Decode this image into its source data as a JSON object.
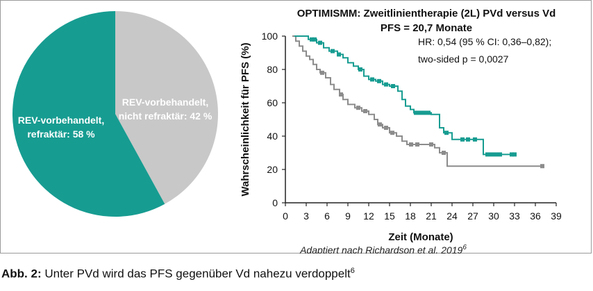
{
  "chart_data": [
    {
      "type": "pie",
      "slices": [
        {
          "label_line1": "REV-vorbehandelt,",
          "label_line2": "refraktär: 58 %",
          "value": 58,
          "color": "#179c91"
        },
        {
          "label_line1": "REV-vorbehandelt,",
          "label_line2": "nicht refraktär: 42 %",
          "value": 42,
          "color": "#c8c8c8"
        }
      ]
    },
    {
      "type": "line",
      "title": "OPTIMISMM: Zweitlinientherapie (2L) PVd versus Vd",
      "subtitle": "PFS = 20,7 Monate",
      "annotation_line1": "HR: 0,54 (95 % CI: 0,36–0,82);",
      "annotation_line2": "two-sided p = 0,0027",
      "xlabel": "Zeit (Monate)",
      "ylabel": "Wahrscheinlichkeit für PFS (%)",
      "xlim": [
        0,
        39
      ],
      "ylim": [
        0,
        100
      ],
      "xticks": [
        0,
        3,
        6,
        9,
        12,
        15,
        18,
        21,
        24,
        27,
        30,
        33,
        36,
        39
      ],
      "yticks": [
        0,
        20,
        40,
        60,
        80,
        100
      ],
      "source_note": "Adaptiert nach Richardson et al. 2019",
      "source_sup": "6",
      "series": [
        {
          "color": "#179c91",
          "steps": [
            [
              1.3,
              100
            ],
            [
              3.3,
              98
            ],
            [
              4.5,
              96
            ],
            [
              5.5,
              93
            ],
            [
              6.3,
              91
            ],
            [
              7.5,
              89
            ],
            [
              8.3,
              87
            ],
            [
              9.0,
              84
            ],
            [
              9.8,
              82
            ],
            [
              10.5,
              80
            ],
            [
              11.3,
              76
            ],
            [
              12.0,
              74
            ],
            [
              13.0,
              73
            ],
            [
              14.0,
              71
            ],
            [
              15.0,
              70
            ],
            [
              16.2,
              67
            ],
            [
              16.8,
              62
            ],
            [
              17.3,
              58
            ],
            [
              18.0,
              56
            ],
            [
              18.5,
              54
            ],
            [
              21.0,
              53
            ],
            [
              22.2,
              45
            ],
            [
              22.8,
              42
            ],
            [
              24.0,
              38
            ],
            [
              26.5,
              38
            ],
            [
              28.0,
              38
            ],
            [
              28.5,
              29
            ],
            [
              33.0,
              29
            ]
          ],
          "censors": [
            3.8,
            4.2,
            5.0,
            6.8,
            7.7,
            10.8,
            12.5,
            13.5,
            14.5,
            15.5,
            18.8,
            19.4,
            20.0,
            20.6,
            23.2,
            25.5,
            26.3,
            27.3,
            29.1,
            29.7,
            30.3,
            30.9,
            32.6,
            33.0
          ]
        },
        {
          "color": "#8c8c8c",
          "steps": [
            [
              1.0,
              100
            ],
            [
              1.5,
              97
            ],
            [
              2.0,
              94
            ],
            [
              2.5,
              91
            ],
            [
              3.0,
              88
            ],
            [
              3.5,
              86
            ],
            [
              4.0,
              83
            ],
            [
              4.5,
              80
            ],
            [
              5.0,
              78
            ],
            [
              5.8,
              75
            ],
            [
              6.5,
              71
            ],
            [
              7.0,
              68
            ],
            [
              7.8,
              65
            ],
            [
              8.3,
              62
            ],
            [
              9.0,
              59
            ],
            [
              10.0,
              57
            ],
            [
              11.0,
              55
            ],
            [
              12.0,
              53
            ],
            [
              12.8,
              50
            ],
            [
              13.3,
              47
            ],
            [
              14.0,
              45
            ],
            [
              15.0,
              42
            ],
            [
              16.0,
              40
            ],
            [
              16.8,
              37
            ],
            [
              17.5,
              35
            ],
            [
              20.0,
              35
            ],
            [
              21.5,
              33
            ],
            [
              22.2,
              30
            ],
            [
              23.3,
              22
            ],
            [
              37.0,
              22
            ]
          ],
          "censors": [
            5.3,
            8.0,
            10.5,
            11.5,
            13.6,
            14.5,
            15.4,
            18.1,
            19.0,
            21.0,
            22.8,
            37.0
          ]
        }
      ]
    }
  ],
  "caption": {
    "label": "Abb. 2:",
    "text": " Unter PVd wird das PFS gegenüber Vd nahezu verdoppelt",
    "sup": "6"
  }
}
